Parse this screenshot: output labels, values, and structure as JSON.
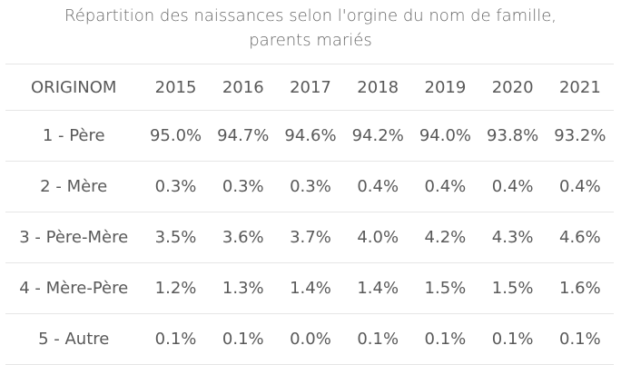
{
  "chart_data": {
    "type": "table",
    "title": "Répartition des naissances selon l'orgine du nom de famille,",
    "subtitle": "parents mariés",
    "columns": [
      "ORIGINOM",
      "2015",
      "2016",
      "2017",
      "2018",
      "2019",
      "2020",
      "2021"
    ],
    "rows": [
      {
        "name": "1 - Père",
        "values": [
          "95.0%",
          "94.7%",
          "94.6%",
          "94.2%",
          "94.0%",
          "93.8%",
          "93.2%"
        ]
      },
      {
        "name": "2 - Mère",
        "values": [
          "0.3%",
          "0.3%",
          "0.3%",
          "0.4%",
          "0.4%",
          "0.4%",
          "0.4%"
        ]
      },
      {
        "name": "3 - Père-Mère",
        "values": [
          "3.5%",
          "3.6%",
          "3.7%",
          "4.0%",
          "4.2%",
          "4.3%",
          "4.6%"
        ]
      },
      {
        "name": "4 - Mère-Père",
        "values": [
          "1.2%",
          "1.3%",
          "1.4%",
          "1.4%",
          "1.5%",
          "1.5%",
          "1.6%"
        ]
      },
      {
        "name": "5 - Autre",
        "values": [
          "0.1%",
          "0.1%",
          "0.0%",
          "0.1%",
          "0.1%",
          "0.1%",
          "0.1%"
        ]
      }
    ]
  },
  "colors": {
    "text": "#595959",
    "title": "#666666",
    "rule": "#e6e6e6",
    "background": "#ffffff"
  }
}
